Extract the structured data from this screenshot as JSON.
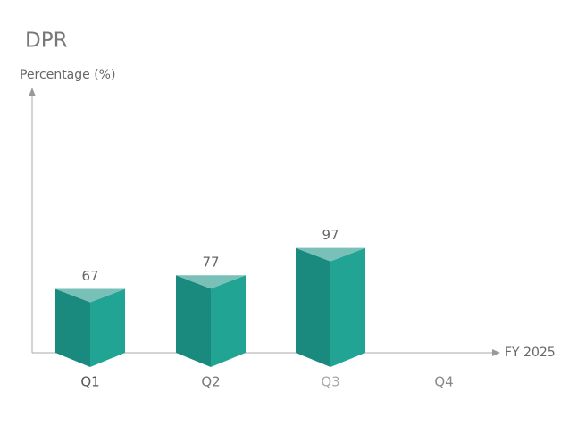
{
  "chart_data": {
    "type": "bar3d",
    "title": "DPR",
    "y_label": "Percentage (%)",
    "x_label": "FY 2025",
    "categories": [
      "Q1",
      "Q2",
      "Q3",
      "Q4"
    ],
    "category_label_colors": [
      "#555555",
      "#777777",
      "#aaaaaa",
      "#888888"
    ],
    "values": [
      67,
      77,
      97,
      null
    ],
    "colors": {
      "left": "#1b8a7e",
      "right": "#21a494",
      "top": "#79c0b9"
    }
  }
}
